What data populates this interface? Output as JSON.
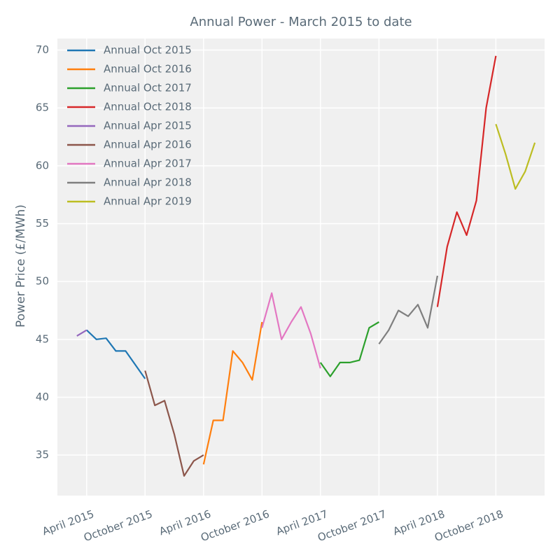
{
  "chart_data": {
    "type": "line",
    "title": "Annual Power - March 2015 to date",
    "ylabel": "Power Price (£/MWh)",
    "xlim": [
      "2015-01",
      "2019-03"
    ],
    "ylim": [
      31.5,
      71
    ],
    "xticks": [
      {
        "value": "2015-04",
        "label": "April 2015"
      },
      {
        "value": "2015-10",
        "label": "October 2015"
      },
      {
        "value": "2016-04",
        "label": "April 2016"
      },
      {
        "value": "2016-10",
        "label": "October 2016"
      },
      {
        "value": "2017-04",
        "label": "April 2017"
      },
      {
        "value": "2017-10",
        "label": "October 2017"
      },
      {
        "value": "2018-04",
        "label": "April 2018"
      },
      {
        "value": "2018-10",
        "label": "October 2018"
      }
    ],
    "yticks": [
      35,
      40,
      45,
      50,
      55,
      60,
      65,
      70
    ],
    "grid": true,
    "legend": "upper left",
    "series": [
      {
        "name": "Annual Oct 2015",
        "color": "#1f77b4",
        "x": [
          "2015-04",
          "2015-05",
          "2015-06",
          "2015-07",
          "2015-08",
          "2015-09",
          "2015-10"
        ],
        "values": [
          45.8,
          45.0,
          45.1,
          44.0,
          44.0,
          42.8,
          41.6
        ]
      },
      {
        "name": "Annual Oct 2016",
        "color": "#ff7f0e",
        "x": [
          "2016-04",
          "2016-05",
          "2016-06",
          "2016-07",
          "2016-08",
          "2016-09",
          "2016-10"
        ],
        "values": [
          34.2,
          38.0,
          38.0,
          44.0,
          43.0,
          41.5,
          46.5
        ]
      },
      {
        "name": "Annual Oct 2017",
        "color": "#2ca02c",
        "x": [
          "2017-04",
          "2017-05",
          "2017-06",
          "2017-07",
          "2017-08",
          "2017-09",
          "2017-10"
        ],
        "values": [
          43.0,
          41.8,
          43.0,
          43.0,
          43.2,
          46.0,
          46.5
        ]
      },
      {
        "name": "Annual Oct 2018",
        "color": "#d62728",
        "x": [
          "2018-04",
          "2018-05",
          "2018-06",
          "2018-07",
          "2018-08",
          "2018-09",
          "2018-10"
        ],
        "values": [
          47.8,
          53.0,
          56.0,
          54.0,
          57.0,
          65.0,
          69.5
        ]
      },
      {
        "name": "Annual Apr 2015",
        "color": "#9467bd",
        "x": [
          "2015-03",
          "2015-04"
        ],
        "values": [
          45.3,
          45.8
        ]
      },
      {
        "name": "Annual Apr 2016",
        "color": "#8c564b",
        "x": [
          "2015-10",
          "2015-11",
          "2015-12",
          "2016-01",
          "2016-02",
          "2016-03",
          "2016-04"
        ],
        "values": [
          42.3,
          39.3,
          39.7,
          36.8,
          33.2,
          34.5,
          35.0
        ]
      },
      {
        "name": "Annual Apr 2017",
        "color": "#e377c2",
        "x": [
          "2016-10",
          "2016-11",
          "2016-12",
          "2017-01",
          "2017-02",
          "2017-03",
          "2017-04"
        ],
        "values": [
          46.0,
          49.0,
          45.0,
          46.5,
          47.8,
          45.5,
          42.5
        ]
      },
      {
        "name": "Annual Apr 2018",
        "color": "#7f7f7f",
        "x": [
          "2017-10",
          "2017-11",
          "2017-12",
          "2018-01",
          "2018-02",
          "2018-03",
          "2018-04"
        ],
        "values": [
          44.6,
          45.8,
          47.5,
          47.0,
          48.0,
          46.0,
          50.5
        ]
      },
      {
        "name": "Annual Apr 2019",
        "color": "#bcbd22",
        "x": [
          "2018-10",
          "2018-11",
          "2018-12",
          "2019-01",
          "2019-02"
        ],
        "values": [
          63.6,
          61.0,
          58.0,
          59.5,
          62.0
        ]
      }
    ]
  }
}
